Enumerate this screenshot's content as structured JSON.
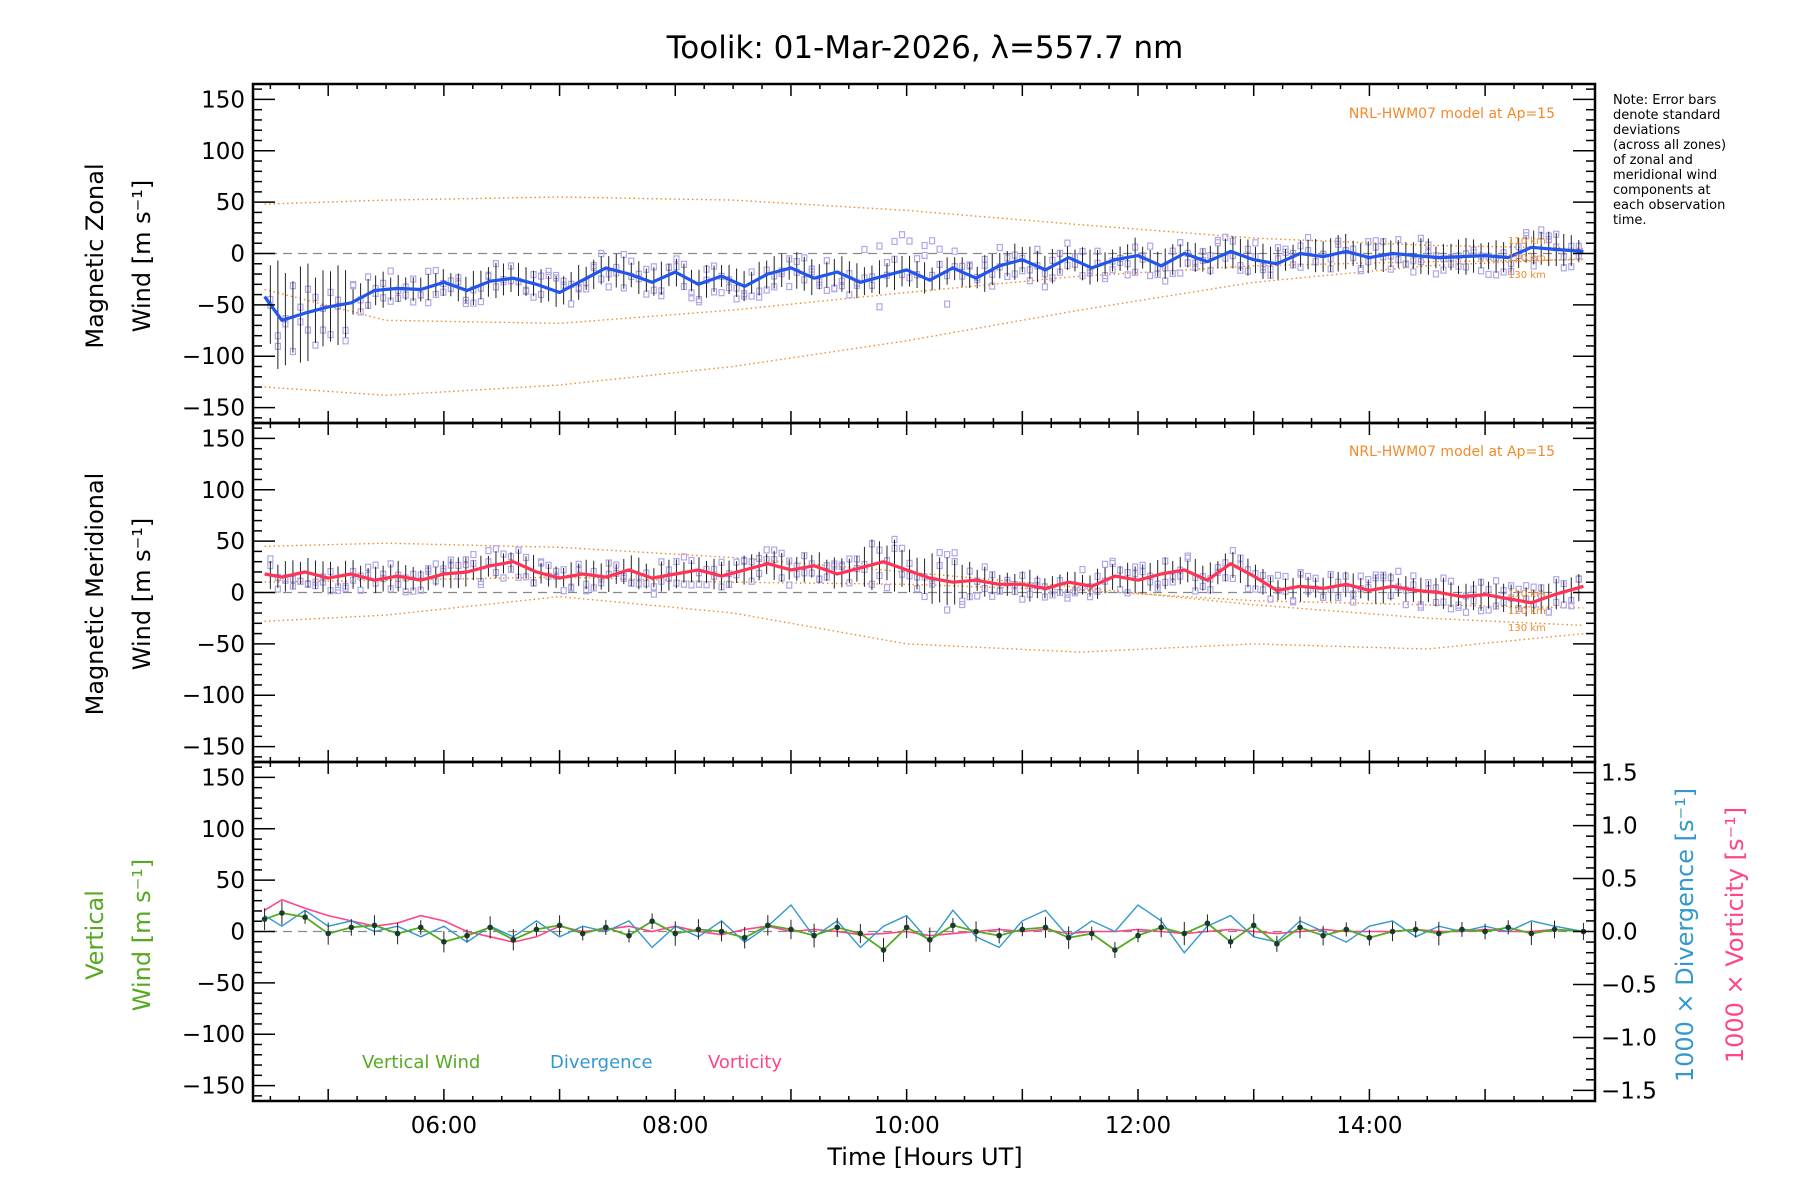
{
  "title": "Toolik: 01-Mar-2026, λ=557.7 nm",
  "note": [
    "Note: Error bars",
    "denote standard",
    "deviations",
    "(across all zones)",
    "of zonal and",
    "meridional wind",
    "components at",
    "each observation",
    "time."
  ],
  "colors": {
    "zonal": "#2255ee",
    "meridional": "#ff3355",
    "vertical": "#55aa22",
    "divergence": "#3399cc",
    "vorticity": "#ff4488",
    "model": "#f08a2c",
    "points": "#b0a8e8"
  },
  "chart_data": [
    {
      "type": "line",
      "panel": "zonal",
      "ylabel_line1": "Magnetic Zonal",
      "ylabel_line2": "Wind [m s⁻¹]",
      "ylim": [
        -165,
        165
      ],
      "yticks": [
        "150",
        "100",
        "50",
        "0",
        "−50",
        "−100",
        "−150"
      ],
      "model_label": "NRL-HWM07 model at Ap=15",
      "altitude_labels": [
        "110 km",
        "120 km",
        "130 km"
      ],
      "x": [
        4.45,
        4.6,
        4.8,
        5.0,
        5.2,
        5.4,
        5.6,
        5.8,
        6.0,
        6.2,
        6.4,
        6.6,
        6.8,
        7.0,
        7.2,
        7.4,
        7.6,
        7.8,
        8.0,
        8.2,
        8.4,
        8.6,
        8.8,
        9.0,
        9.2,
        9.4,
        9.6,
        9.8,
        10.0,
        10.2,
        10.4,
        10.6,
        10.8,
        11.0,
        11.2,
        11.4,
        11.6,
        11.8,
        12.0,
        12.2,
        12.4,
        12.6,
        12.8,
        13.0,
        13.2,
        13.4,
        13.6,
        13.8,
        14.0,
        14.2,
        14.4,
        14.6,
        14.8,
        15.0,
        15.2,
        15.4,
        15.6,
        15.85
      ],
      "values": [
        -42,
        -65,
        -58,
        -52,
        -48,
        -36,
        -34,
        -35,
        -28,
        -36,
        -27,
        -24,
        -30,
        -38,
        -26,
        -14,
        -20,
        -28,
        -18,
        -30,
        -22,
        -32,
        -20,
        -14,
        -24,
        -18,
        -28,
        -22,
        -16,
        -26,
        -14,
        -24,
        -12,
        -6,
        -16,
        -4,
        -14,
        -6,
        -2,
        -12,
        0,
        -8,
        2,
        -6,
        -10,
        0,
        -3,
        2,
        -4,
        0,
        -2,
        -4,
        -3,
        -2,
        -4,
        6,
        4,
        2
      ],
      "model_lines": [
        {
          "altitude": "110 km",
          "x": [
            4.45,
            5.5,
            7.0,
            8.5,
            10.0,
            11.5,
            13.0,
            14.5,
            15.85
          ],
          "values": [
            -130,
            -138,
            -128,
            -110,
            -85,
            -55,
            -28,
            -12,
            -5
          ]
        },
        {
          "altitude": "120 km",
          "x": [
            4.45,
            5.5,
            7.0,
            8.5,
            10.0,
            11.5,
            13.0,
            14.5,
            15.85
          ],
          "values": [
            48,
            52,
            55,
            52,
            42,
            28,
            15,
            8,
            5
          ]
        },
        {
          "altitude": "130 km",
          "x": [
            4.45,
            5.5,
            7.0,
            8.5,
            10.0,
            11.5,
            13.0,
            14.5,
            15.85
          ],
          "values": [
            -35,
            -65,
            -68,
            -55,
            -38,
            -22,
            -12,
            -8,
            -6
          ]
        }
      ]
    },
    {
      "type": "line",
      "panel": "meridional",
      "ylabel_line1": "Magnetic Meridional",
      "ylabel_line2": "Wind [m s⁻¹]",
      "ylim": [
        -165,
        165
      ],
      "yticks": [
        "150",
        "100",
        "50",
        "0",
        "−50",
        "−100",
        "−150"
      ],
      "model_label": "NRL-HWM07 model at Ap=15",
      "altitude_labels": [
        "110 km",
        "120 km",
        "130 km"
      ],
      "x": [
        4.45,
        4.6,
        4.8,
        5.0,
        5.2,
        5.4,
        5.6,
        5.8,
        6.0,
        6.2,
        6.4,
        6.6,
        6.8,
        7.0,
        7.2,
        7.4,
        7.6,
        7.8,
        8.0,
        8.2,
        8.4,
        8.6,
        8.8,
        9.0,
        9.2,
        9.4,
        9.6,
        9.8,
        10.0,
        10.2,
        10.4,
        10.6,
        10.8,
        11.0,
        11.2,
        11.4,
        11.6,
        11.8,
        12.0,
        12.2,
        12.4,
        12.6,
        12.8,
        13.0,
        13.2,
        13.4,
        13.6,
        13.8,
        14.0,
        14.2,
        14.4,
        14.6,
        14.8,
        15.0,
        15.2,
        15.4,
        15.6,
        15.85
      ],
      "values": [
        18,
        15,
        20,
        14,
        18,
        12,
        16,
        12,
        18,
        20,
        26,
        30,
        20,
        14,
        18,
        15,
        22,
        14,
        18,
        22,
        16,
        22,
        28,
        22,
        26,
        18,
        24,
        30,
        22,
        14,
        10,
        12,
        8,
        8,
        4,
        10,
        6,
        16,
        12,
        18,
        22,
        12,
        28,
        16,
        2,
        6,
        4,
        8,
        2,
        6,
        2,
        0,
        -4,
        -2,
        -6,
        -10,
        -2,
        6
      ],
      "model_lines": [
        {
          "altitude": "110 km",
          "x": [
            4.45,
            5.5,
            7.0,
            8.5,
            10.0,
            11.5,
            13.0,
            14.5,
            15.85
          ],
          "values": [
            45,
            48,
            44,
            34,
            20,
            5,
            -12,
            -25,
            -32
          ]
        },
        {
          "altitude": "120 km",
          "x": [
            4.45,
            5.5,
            7.0,
            8.5,
            10.0,
            11.5,
            13.0,
            14.5,
            15.85
          ],
          "values": [
            -28,
            -22,
            -4,
            -20,
            -50,
            -58,
            -50,
            -55,
            -40
          ]
        },
        {
          "altitude": "130 km",
          "x": [
            4.45,
            5.5,
            7.0,
            8.5,
            10.0,
            11.5,
            13.0,
            14.5,
            15.85
          ],
          "values": [
            10,
            12,
            15,
            10,
            8,
            2,
            -8,
            -12,
            -15
          ]
        }
      ]
    },
    {
      "type": "line",
      "panel": "vertical",
      "ylabel_line1": "Vertical",
      "ylabel_line2": "Wind [m s⁻¹]",
      "ylim": [
        -165,
        165
      ],
      "yticks": [
        "150",
        "100",
        "50",
        "0",
        "−50",
        "−100",
        "−150"
      ],
      "y2label_line1": "1000 × Divergence [s⁻¹]",
      "y2label_line2": "1000 × Vorticity [s⁻¹]",
      "y2lim": [
        -1.6,
        1.6
      ],
      "y2ticks": [
        "1.5",
        "1.0",
        "0.5",
        "0.0",
        "−0.5",
        "−1.0",
        "−1.5"
      ],
      "xlabel": "Time [Hours UT]",
      "xlim": [
        4.35,
        15.95
      ],
      "xticks": [
        "06:00",
        "08:00",
        "10:00",
        "12:00",
        "14:00"
      ],
      "legend": [
        "Vertical Wind",
        "Divergence",
        "Vorticity"
      ],
      "series": [
        {
          "name": "Vertical Wind",
          "x": [
            4.45,
            4.6,
            4.8,
            5.0,
            5.2,
            5.4,
            5.6,
            5.8,
            6.0,
            6.2,
            6.4,
            6.6,
            6.8,
            7.0,
            7.2,
            7.4,
            7.6,
            7.8,
            8.0,
            8.2,
            8.4,
            8.6,
            8.8,
            9.0,
            9.2,
            9.4,
            9.6,
            9.8,
            10.0,
            10.2,
            10.4,
            10.6,
            10.8,
            11.0,
            11.2,
            11.4,
            11.6,
            11.8,
            12.0,
            12.2,
            12.4,
            12.6,
            12.8,
            13.0,
            13.2,
            13.4,
            13.6,
            13.8,
            14.0,
            14.2,
            14.4,
            14.6,
            14.8,
            15.0,
            15.2,
            15.4,
            15.6,
            15.85
          ],
          "values": [
            12,
            18,
            14,
            -2,
            4,
            6,
            -2,
            4,
            -10,
            -4,
            4,
            -8,
            2,
            6,
            -2,
            4,
            -4,
            10,
            -2,
            2,
            0,
            -6,
            6,
            2,
            -4,
            4,
            -2,
            -18,
            4,
            -8,
            6,
            0,
            -4,
            2,
            4,
            -6,
            -2,
            -18,
            -4,
            4,
            -2,
            8,
            -10,
            6,
            -12,
            4,
            -4,
            2,
            -6,
            0,
            2,
            -2,
            2,
            0,
            4,
            -2,
            2,
            0
          ]
        },
        {
          "name": "Divergence",
          "x": [
            4.45,
            4.6,
            4.8,
            5.0,
            5.2,
            5.4,
            5.6,
            5.8,
            6.0,
            6.2,
            6.4,
            6.6,
            6.8,
            7.0,
            7.2,
            7.4,
            7.6,
            7.8,
            8.0,
            8.2,
            8.4,
            8.6,
            8.8,
            9.0,
            9.2,
            9.4,
            9.6,
            9.8,
            10.0,
            10.2,
            10.4,
            10.6,
            10.8,
            11.0,
            11.2,
            11.4,
            11.6,
            11.8,
            12.0,
            12.2,
            12.4,
            12.6,
            12.8,
            13.0,
            13.2,
            13.4,
            13.6,
            13.8,
            14.0,
            14.2,
            14.4,
            14.6,
            14.8,
            15.0,
            15.2,
            15.4,
            15.6,
            15.85
          ],
          "values": [
            0.15,
            0.05,
            0.2,
            0.05,
            0.1,
            0.0,
            0.05,
            -0.05,
            0.05,
            -0.1,
            0.05,
            -0.05,
            0.1,
            -0.05,
            0.05,
            0.0,
            0.1,
            -0.15,
            0.05,
            -0.05,
            0.1,
            -0.1,
            0.05,
            0.25,
            -0.05,
            0.1,
            -0.15,
            0.05,
            0.15,
            -0.1,
            0.2,
            -0.05,
            -0.15,
            0.1,
            0.2,
            -0.05,
            0.1,
            0.0,
            0.25,
            0.1,
            -0.2,
            0.05,
            0.15,
            -0.05,
            -0.1,
            0.1,
            0.0,
            -0.1,
            0.05,
            0.1,
            -0.05,
            0.05,
            0.0,
            0.05,
            0.0,
            0.1,
            0.05,
            0.0
          ]
        },
        {
          "name": "Vorticity",
          "x": [
            4.45,
            4.6,
            4.8,
            5.0,
            5.2,
            5.4,
            5.6,
            5.8,
            6.0,
            6.2,
            6.4,
            6.6,
            6.8,
            7.0,
            7.2,
            7.4,
            7.6,
            7.8,
            8.0,
            8.2,
            8.4,
            8.6,
            8.8,
            9.0,
            9.2,
            9.4,
            9.6,
            9.8,
            10.0,
            10.2,
            10.4,
            10.6,
            10.8,
            11.0,
            11.2,
            11.4,
            11.6,
            11.8,
            12.0,
            12.2,
            12.4,
            12.6,
            12.8,
            13.0,
            13.2,
            13.4,
            13.6,
            13.8,
            14.0,
            14.2,
            14.4,
            14.6,
            14.8,
            15.0,
            15.2,
            15.4,
            15.6,
            15.85
          ],
          "values": [
            0.2,
            0.3,
            0.22,
            0.15,
            0.1,
            0.05,
            0.08,
            0.15,
            0.1,
            0.0,
            -0.05,
            -0.1,
            -0.05,
            0.05,
            0.0,
            0.02,
            0.05,
            0.0,
            0.05,
            0.0,
            -0.03,
            0.02,
            0.05,
            0.0,
            0.02,
            0.0,
            -0.03,
            -0.02,
            0.0,
            -0.04,
            -0.02,
            0.0,
            0.02,
            0.0,
            0.02,
            -0.02,
            0.0,
            0.0,
            0.02,
            0.0,
            -0.02,
            0.0,
            0.02,
            0.0,
            -0.02,
            0.0,
            0.02,
            0.0,
            0.0,
            0.0,
            0.02,
            0.0,
            0.0,
            0.02,
            0.0,
            0.0,
            0.02,
            0.0
          ]
        }
      ]
    }
  ]
}
